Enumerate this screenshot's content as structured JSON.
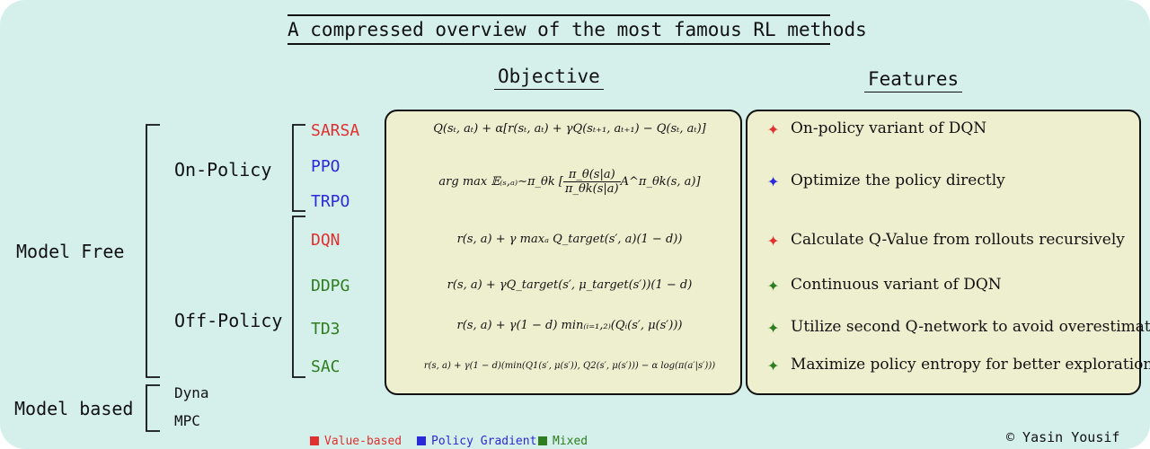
{
  "title": "A compressed overview of the most famous RL methods",
  "headers": {
    "objective": "Objective",
    "features": "Features"
  },
  "categories": {
    "model_free": "Model Free",
    "on_policy": "On-Policy",
    "off_policy": "Off-Policy",
    "model_based": "Model based"
  },
  "methods": {
    "sarsa": {
      "name": "SARSA",
      "color": "#e03030"
    },
    "ppo": {
      "name": "PPO",
      "color": "#2a2ad8"
    },
    "trpo": {
      "name": "TRPO",
      "color": "#2a2ad8"
    },
    "dqn": {
      "name": "DQN",
      "color": "#e03030"
    },
    "ddpg": {
      "name": "DDPG",
      "color": "#2e7d1f"
    },
    "td3": {
      "name": "TD3",
      "color": "#2e7d1f"
    },
    "sac": {
      "name": "SAC",
      "color": "#2e7d1f"
    },
    "dyna": {
      "name": "Dyna"
    },
    "mpc": {
      "name": "MPC"
    }
  },
  "objectives": {
    "sarsa": "Q(sₜ, aₜ) + α[r(sₜ, aₜ) + γQ(sₜ₊₁, aₜ₊₁) − Q(sₜ, aₜ)]",
    "ppo_trpo_prefix": "arg max 𝔼₍ₛ,ₐ₎∼π_θk [",
    "ppo_trpo_num": "π_θ(s|a)",
    "ppo_trpo_den": "π_θk(s|a)",
    "ppo_trpo_suffix": "A^π_θk(s, a)]",
    "dqn": "r(s, a) + γ maxₐ Q_target(s′, a)(1 − d))",
    "ddpg": "r(s, a) + γQ_target(s′, μ_target(s′))(1 − d)",
    "td3": "r(s, a) + γ(1 − d) min₍ᵢ₌₁,₂₎(Qᵢ(s′, μ(s′)))",
    "sac": "r(s, a) + γ(1 − d)(min(Q1(s′, μ(s′)), Q2(s′, μ(s′))) − α log(π(a′|s′)))"
  },
  "features": {
    "sarsa": "On-policy variant of DQN",
    "ppo_trpo": "Optimize the policy directly",
    "dqn": "Calculate Q-Value from rollouts recursively",
    "ddpg": "Continuous variant of DQN",
    "td3": "Utilize second Q-network to avoid overestimation",
    "sac": "Maximize policy entropy for better exploration"
  },
  "legend": [
    {
      "label": "Value-based",
      "color": "#e03030"
    },
    {
      "label": "Policy Gradient",
      "color": "#2a2ad8"
    },
    {
      "label": "Mixed",
      "color": "#2e7d1f"
    }
  ],
  "credit": "© Yasin Yousif"
}
